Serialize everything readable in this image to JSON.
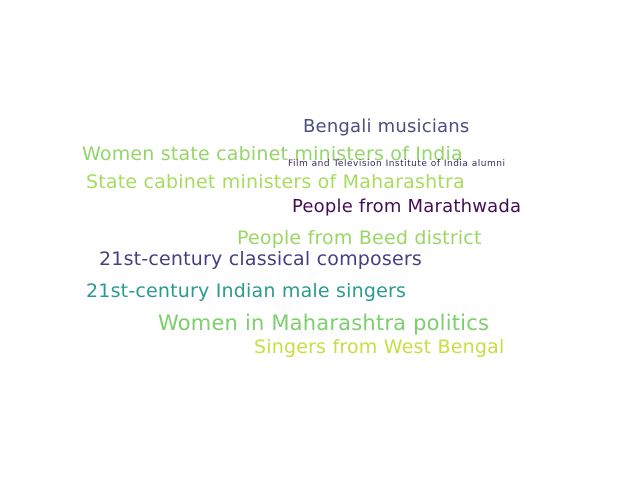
{
  "words": [
    {
      "text": "Bengali musicians",
      "color": "#4a4e83"
    },
    {
      "text": "Women state cabinet ministers of India",
      "color": "#93d668"
    },
    {
      "text": "Film and Television Institute of India alumni",
      "color": "#3b2a5c"
    },
    {
      "text": "State cabinet ministers of Maharashtra",
      "color": "#a7dc5f"
    },
    {
      "text": "People from Marathwada",
      "color": "#430d55"
    },
    {
      "text": "People from Beed district",
      "color": "#9bd664"
    },
    {
      "text": "21st-century classical composers",
      "color": "#443f80"
    },
    {
      "text": "21st-century Indian male singers",
      "color": "#2a9a91"
    },
    {
      "text": "Women in Maharashtra politics",
      "color": "#7ccf6c"
    },
    {
      "text": "Singers from West Bengal",
      "color": "#c6e043"
    }
  ]
}
